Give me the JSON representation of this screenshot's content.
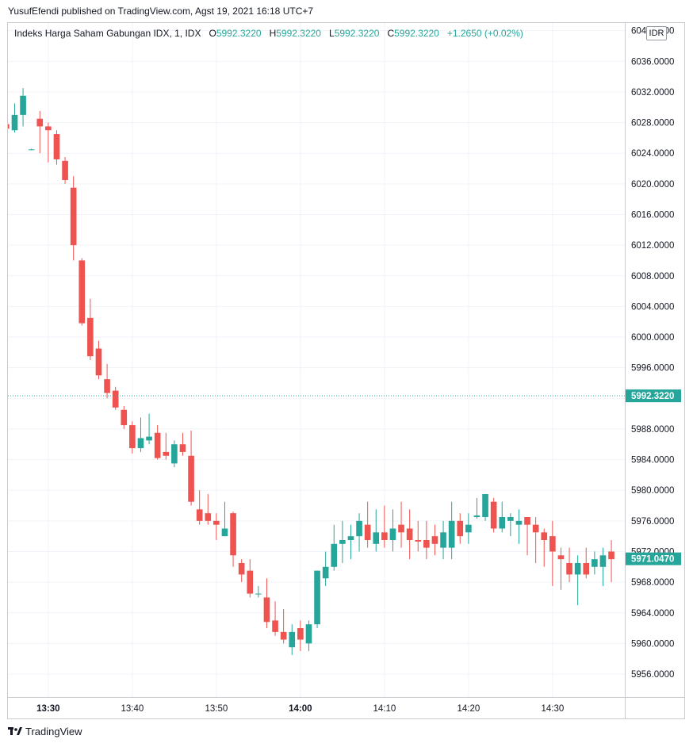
{
  "header": {
    "published_text": "YusufEfendi published on TradingView.com, Agst 19, 2021 16:18 UTC+7"
  },
  "legend": {
    "symbol": "Indeks Harga Saham Gabungan IDX, 1, IDX",
    "o_label": "O",
    "o_value": "5992.3220",
    "h_label": "H",
    "h_value": "5992.3220",
    "l_label": "L",
    "l_value": "5992.3220",
    "c_label": "C",
    "c_value": "5992.3220",
    "change": "+1.2650 (+0.02%)"
  },
  "currency": "IDR",
  "footer": {
    "brand": "TradingView"
  },
  "colors": {
    "up": "#26a69a",
    "down": "#ef5350",
    "grid": "#f0f3fa",
    "axis_text": "#131722"
  },
  "chart_data": {
    "type": "candlestick",
    "ylim": [
      5953,
      6041
    ],
    "y_ticks": [
      "5956.0000",
      "5960.0000",
      "5964.0000",
      "5968.0000",
      "5972.0000",
      "5976.0000",
      "5980.0000",
      "5984.0000",
      "5988.0000",
      "5992.0000",
      "5996.0000",
      "6000.0000",
      "6004.0000",
      "6008.0000",
      "6012.0000",
      "6016.0000",
      "6020.0000",
      "6024.0000",
      "6028.0000",
      "6032.0000",
      "6036.0000",
      "6040.0000"
    ],
    "x_ticks": [
      {
        "label": "13:30",
        "minute": 30
      },
      {
        "label": "13:40",
        "minute": 40
      },
      {
        "label": "13:50",
        "minute": 50
      },
      {
        "label": "14:00",
        "minute": 60
      },
      {
        "label": "14:10",
        "minute": 70
      },
      {
        "label": "14:20",
        "minute": 80
      },
      {
        "label": "14:30",
        "minute": 90
      }
    ],
    "x_start_minute": 25.2,
    "x_end_minute": 98.6,
    "price_lines": [
      {
        "label": "5992.3220",
        "value": 5992.322,
        "style": "dotted"
      },
      {
        "label": "5971.0470",
        "value": 5971.047,
        "style": "last"
      }
    ],
    "candles": [
      {
        "t": "13:25",
        "o": 6027.8,
        "h": 6031.0,
        "l": 6026.8,
        "c": 6027.2
      },
      {
        "t": "13:26",
        "o": 6027.0,
        "h": 6030.5,
        "l": 6026.7,
        "c": 6029.0
      },
      {
        "t": "13:27",
        "o": 6029.0,
        "h": 6032.5,
        "l": 6027.5,
        "c": 6031.5
      },
      {
        "t": "13:28",
        "o": 6024.5,
        "h": 6024.6,
        "l": 6024.4,
        "c": 6024.5
      },
      {
        "t": "13:29",
        "o": 6028.5,
        "h": 6029.5,
        "l": 6024.0,
        "c": 6027.5
      },
      {
        "t": "13:30",
        "o": 6027.5,
        "h": 6028.0,
        "l": 6022.8,
        "c": 6027.0
      },
      {
        "t": "13:31",
        "o": 6026.5,
        "h": 6027.0,
        "l": 6022.5,
        "c": 6023.2
      },
      {
        "t": "13:32",
        "o": 6023.0,
        "h": 6023.5,
        "l": 6020.0,
        "c": 6020.5
      },
      {
        "t": "13:33",
        "o": 6019.5,
        "h": 6021.0,
        "l": 6010.0,
        "c": 6012.0
      },
      {
        "t": "13:34",
        "o": 6010.0,
        "h": 6010.3,
        "l": 6001.5,
        "c": 6001.8
      },
      {
        "t": "13:35",
        "o": 6002.5,
        "h": 6005.0,
        "l": 5997.0,
        "c": 5997.5
      },
      {
        "t": "13:36",
        "o": 5998.5,
        "h": 5999.5,
        "l": 5994.5,
        "c": 5995.0
      },
      {
        "t": "13:37",
        "o": 5994.5,
        "h": 5996.5,
        "l": 5992.0,
        "c": 5992.7
      },
      {
        "t": "13:38",
        "o": 5993.0,
        "h": 5993.5,
        "l": 5990.5,
        "c": 5990.8
      },
      {
        "t": "13:39",
        "o": 5990.5,
        "h": 5991.0,
        "l": 5988.0,
        "c": 5988.5
      },
      {
        "t": "13:40",
        "o": 5988.5,
        "h": 5989.0,
        "l": 5984.8,
        "c": 5985.5
      },
      {
        "t": "13:41",
        "o": 5985.5,
        "h": 5989.5,
        "l": 5985.0,
        "c": 5986.8
      },
      {
        "t": "13:42",
        "o": 5986.5,
        "h": 5990.0,
        "l": 5986.0,
        "c": 5987.0
      },
      {
        "t": "13:43",
        "o": 5987.5,
        "h": 5988.5,
        "l": 5984.0,
        "c": 5984.2
      },
      {
        "t": "13:44",
        "o": 5985.0,
        "h": 5987.5,
        "l": 5984.0,
        "c": 5984.5
      },
      {
        "t": "13:45",
        "o": 5983.5,
        "h": 5986.5,
        "l": 5983.0,
        "c": 5986.0
      },
      {
        "t": "13:46",
        "o": 5986.0,
        "h": 5987.5,
        "l": 5984.5,
        "c": 5985.0
      },
      {
        "t": "13:47",
        "o": 5984.5,
        "h": 5987.8,
        "l": 5978.0,
        "c": 5978.5
      },
      {
        "t": "13:48",
        "o": 5977.5,
        "h": 5980.0,
        "l": 5975.5,
        "c": 5976.0
      },
      {
        "t": "13:49",
        "o": 5977.0,
        "h": 5979.5,
        "l": 5975.5,
        "c": 5976.0
      },
      {
        "t": "13:50",
        "o": 5976.0,
        "h": 5977.0,
        "l": 5973.5,
        "c": 5975.5
      },
      {
        "t": "13:51",
        "o": 5974.0,
        "h": 5978.5,
        "l": 5974.0,
        "c": 5975.0
      },
      {
        "t": "13:52",
        "o": 5977.0,
        "h": 5977.2,
        "l": 5970.0,
        "c": 5971.5
      },
      {
        "t": "13:53",
        "o": 5970.5,
        "h": 5971.0,
        "l": 5968.0,
        "c": 5969.0
      },
      {
        "t": "13:54",
        "o": 5969.5,
        "h": 5971.0,
        "l": 5966.0,
        "c": 5966.5
      },
      {
        "t": "13:55",
        "o": 5966.5,
        "h": 5967.5,
        "l": 5966.0,
        "c": 5966.5
      },
      {
        "t": "13:56",
        "o": 5966.0,
        "h": 5968.5,
        "l": 5962.0,
        "c": 5962.8
      },
      {
        "t": "13:57",
        "o": 5963.0,
        "h": 5965.5,
        "l": 5961.0,
        "c": 5961.5
      },
      {
        "t": "13:58",
        "o": 5961.5,
        "h": 5964.5,
        "l": 5960.0,
        "c": 5960.5
      },
      {
        "t": "13:59",
        "o": 5959.5,
        "h": 5962.5,
        "l": 5958.5,
        "c": 5961.5
      },
      {
        "t": "14:00",
        "o": 5962.0,
        "h": 5963.0,
        "l": 5959.0,
        "c": 5960.5
      },
      {
        "t": "14:01",
        "o": 5960.0,
        "h": 5963.0,
        "l": 5959.0,
        "c": 5962.5
      },
      {
        "t": "14:02",
        "o": 5962.5,
        "h": 5969.5,
        "l": 5962.0,
        "c": 5969.5
      },
      {
        "t": "14:03",
        "o": 5968.5,
        "h": 5972.0,
        "l": 5967.5,
        "c": 5970.0
      },
      {
        "t": "14:04",
        "o": 5970.0,
        "h": 5975.5,
        "l": 5969.5,
        "c": 5973.0
      },
      {
        "t": "14:05",
        "o": 5973.0,
        "h": 5976.0,
        "l": 5970.5,
        "c": 5973.5
      },
      {
        "t": "14:06",
        "o": 5973.5,
        "h": 5975.5,
        "l": 5971.0,
        "c": 5974.0
      },
      {
        "t": "14:07",
        "o": 5974.0,
        "h": 5977.0,
        "l": 5972.0,
        "c": 5976.0
      },
      {
        "t": "14:08",
        "o": 5975.5,
        "h": 5978.5,
        "l": 5972.5,
        "c": 5973.5
      },
      {
        "t": "14:09",
        "o": 5973.0,
        "h": 5977.5,
        "l": 5972.0,
        "c": 5974.5
      },
      {
        "t": "14:10",
        "o": 5974.5,
        "h": 5978.0,
        "l": 5972.5,
        "c": 5973.5
      },
      {
        "t": "14:11",
        "o": 5973.5,
        "h": 5977.5,
        "l": 5972.0,
        "c": 5975.0
      },
      {
        "t": "14:12",
        "o": 5975.5,
        "h": 5978.5,
        "l": 5972.5,
        "c": 5974.5
      },
      {
        "t": "14:13",
        "o": 5975.0,
        "h": 5977.5,
        "l": 5971.0,
        "c": 5973.5
      },
      {
        "t": "14:14",
        "o": 5973.5,
        "h": 5976.0,
        "l": 5972.0,
        "c": 5973.3
      },
      {
        "t": "14:15",
        "o": 5973.5,
        "h": 5976.0,
        "l": 5971.0,
        "c": 5972.5
      },
      {
        "t": "14:16",
        "o": 5974.0,
        "h": 5975.5,
        "l": 5971.5,
        "c": 5973.0
      },
      {
        "t": "14:17",
        "o": 5972.5,
        "h": 5976.0,
        "l": 5971.0,
        "c": 5974.5
      },
      {
        "t": "14:18",
        "o": 5972.5,
        "h": 5978.5,
        "l": 5971.0,
        "c": 5976.0
      },
      {
        "t": "14:19",
        "o": 5976.0,
        "h": 5977.0,
        "l": 5973.0,
        "c": 5974.0
      },
      {
        "t": "14:20",
        "o": 5974.5,
        "h": 5977.0,
        "l": 5973.0,
        "c": 5975.5
      },
      {
        "t": "14:21",
        "o": 5976.5,
        "h": 5979.0,
        "l": 5976.3,
        "c": 5976.7
      },
      {
        "t": "14:22",
        "o": 5976.5,
        "h": 5979.5,
        "l": 5976.0,
        "c": 5979.5
      },
      {
        "t": "14:23",
        "o": 5978.5,
        "h": 5979.0,
        "l": 5974.5,
        "c": 5975.0
      },
      {
        "t": "14:24",
        "o": 5975.0,
        "h": 5978.5,
        "l": 5974.5,
        "c": 5976.5
      },
      {
        "t": "14:25",
        "o": 5976.0,
        "h": 5977.0,
        "l": 5974.0,
        "c": 5976.5
      },
      {
        "t": "14:26",
        "o": 5975.5,
        "h": 5977.5,
        "l": 5973.0,
        "c": 5976.0
      },
      {
        "t": "14:27",
        "o": 5976.5,
        "h": 5976.5,
        "l": 5971.5,
        "c": 5975.5
      },
      {
        "t": "14:28",
        "o": 5975.5,
        "h": 5976.5,
        "l": 5970.5,
        "c": 5974.5
      },
      {
        "t": "14:29",
        "o": 5974.5,
        "h": 5975.0,
        "l": 5970.0,
        "c": 5973.5
      },
      {
        "t": "14:30",
        "o": 5974.0,
        "h": 5976.0,
        "l": 5967.5,
        "c": 5972.0
      },
      {
        "t": "14:31",
        "o": 5971.5,
        "h": 5972.5,
        "l": 5967.0,
        "c": 5971.0
      },
      {
        "t": "14:32",
        "o": 5970.5,
        "h": 5972.5,
        "l": 5968.0,
        "c": 5969.0
      },
      {
        "t": "14:33",
        "o": 5969.0,
        "h": 5971.5,
        "l": 5965.0,
        "c": 5970.5
      },
      {
        "t": "14:34",
        "o": 5970.5,
        "h": 5972.5,
        "l": 5968.5,
        "c": 5969.0
      },
      {
        "t": "14:35",
        "o": 5970.0,
        "h": 5972.0,
        "l": 5969.0,
        "c": 5971.0
      },
      {
        "t": "14:36",
        "o": 5970.0,
        "h": 5972.5,
        "l": 5967.5,
        "c": 5971.5
      },
      {
        "t": "14:37",
        "o": 5972.0,
        "h": 5973.5,
        "l": 5968.0,
        "c": 5971.0
      }
    ]
  }
}
